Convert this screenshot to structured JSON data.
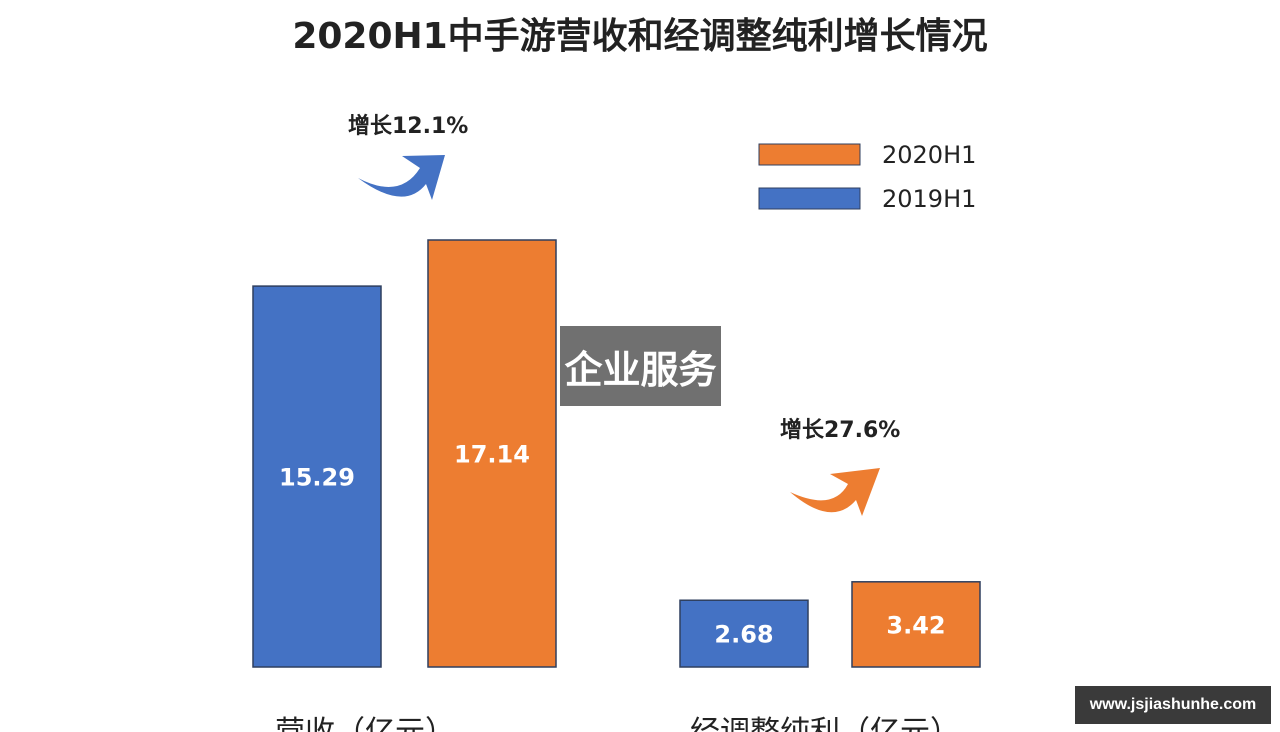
{
  "chart_data": {
    "type": "bar",
    "title": "2020H1中手游营收和经调整纯利增长情况",
    "categories": [
      "营收（亿元）",
      "经调整纯利（亿元）"
    ],
    "series": [
      {
        "name": "2019H1",
        "color": "#4472C4",
        "values": [
          15.29,
          2.68
        ],
        "labels": [
          "15.29",
          "2.68"
        ]
      },
      {
        "name": "2020H1",
        "color": "#ED7D31",
        "values": [
          17.14,
          3.42
        ],
        "labels": [
          "17.14",
          "3.42"
        ]
      }
    ],
    "annotations": [
      {
        "text": "增长12.1%",
        "category": 0,
        "arrow_color": "#4472C4"
      },
      {
        "text": "增长27.6%",
        "category": 1,
        "arrow_color": "#ED7D31"
      }
    ],
    "legend_order": [
      "2020H1",
      "2019H1"
    ],
    "legend_position": "top-right",
    "grid": false
  },
  "overlay": {
    "label": "企业服务"
  },
  "watermark": {
    "text": "www.jsjiashunhe.com"
  }
}
